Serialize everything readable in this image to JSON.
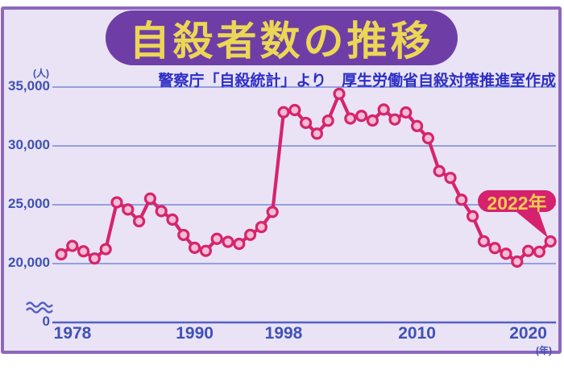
{
  "header": {
    "title": "自殺者数の推移",
    "source_note": "警察庁「自殺統計」より　厚生労働省自殺対策推進室作成"
  },
  "axes": {
    "y_unit": "(人)",
    "y_zero": "0",
    "y_ticks": [
      {
        "label": "35,000",
        "value": 35000
      },
      {
        "label": "30,000",
        "value": 30000
      },
      {
        "label": "25,000",
        "value": 25000
      },
      {
        "label": "20,000",
        "value": 20000
      }
    ],
    "x_ticks": [
      {
        "label": "1978",
        "year": 1978
      },
      {
        "label": "1990",
        "year": 1990
      },
      {
        "label": "1998",
        "year": 1998
      },
      {
        "label": "2010",
        "year": 2010
      },
      {
        "label": "2020",
        "year": 2020
      }
    ],
    "x_unit": "(年)"
  },
  "callout": {
    "label": "2022年",
    "year": 2022
  },
  "colors": {
    "frame_border": "#8d67bd",
    "background": "#e9e3f5",
    "title_bg": "#6e3ea6",
    "title_text": "#ecd755",
    "subtitle_text": "#2d2ec6",
    "axis_text": "#4051b5",
    "grid": "#93a0de",
    "axis_line": "#5560c4",
    "series_line": "#d6246d",
    "marker_fill": "#f3bdd3",
    "callout_bg": "#d6216e",
    "callout_text": "#f2cd4e"
  },
  "chart_data": {
    "type": "line",
    "title": "自殺者数の推移",
    "xlabel": "年",
    "ylabel": "人",
    "grid": true,
    "legend_position": "none",
    "axis_break_at_zero": true,
    "ylim_display": [
      20000,
      35000
    ],
    "x": [
      1978,
      1979,
      1980,
      1981,
      1982,
      1983,
      1984,
      1985,
      1986,
      1987,
      1988,
      1989,
      1990,
      1991,
      1992,
      1993,
      1994,
      1995,
      1996,
      1997,
      1998,
      1999,
      2000,
      2001,
      2002,
      2003,
      2004,
      2005,
      2006,
      2007,
      2008,
      2009,
      2010,
      2011,
      2012,
      2013,
      2014,
      2015,
      2016,
      2017,
      2018,
      2019,
      2020,
      2021,
      2022
    ],
    "series": [
      {
        "name": "自殺者数",
        "values": [
          20788,
          21503,
          21048,
          20434,
          21228,
          25202,
          24596,
          23599,
          25524,
          24460,
          23742,
          22436,
          21346,
          21084,
          22104,
          21851,
          21679,
          22445,
          23104,
          24391,
          32863,
          33048,
          31957,
          31042,
          32143,
          34427,
          32325,
          32552,
          32155,
          33093,
          32249,
          32845,
          31690,
          30651,
          27858,
          27283,
          25427,
          24025,
          21897,
          21321,
          20840,
          20169,
          21081,
          21007,
          21881
        ]
      }
    ],
    "annotations": [
      {
        "text": "2022年",
        "target_x": 2022,
        "target_y": 21881
      }
    ]
  }
}
